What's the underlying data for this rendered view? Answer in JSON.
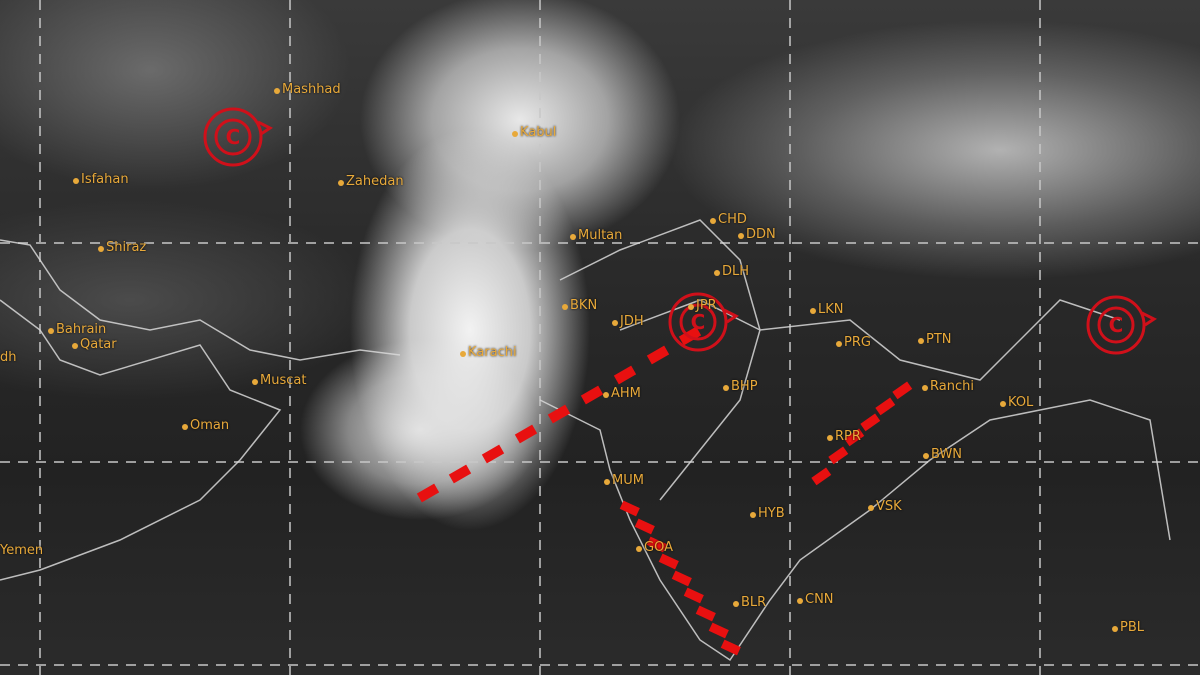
{
  "labels": [
    "Mashhad",
    "Isfahan",
    "Shiraz",
    "Bahrain",
    "Qatar",
    "dh",
    "Muscat",
    "Oman",
    "Yemen",
    "Kabul",
    "Zahedan",
    "Karachi",
    "Multan",
    "CHD",
    "DDN",
    "DLH",
    "BKN",
    "JDH",
    "JPR",
    "LKN",
    "PRG",
    "PTN",
    "BHP",
    "AHM",
    "Ranchi",
    "KOL",
    "BWN",
    "RPR",
    "MUM",
    "HYB",
    "VSK",
    "GOA",
    "BLR",
    "CNN",
    "PBL"
  ],
  "cyclonic_circulation_symbol": "C",
  "colors": {
    "labels": "#e8a93a",
    "trough": "#e01010",
    "cyclone": "#d0101a",
    "grid": "#c8c8c8"
  }
}
